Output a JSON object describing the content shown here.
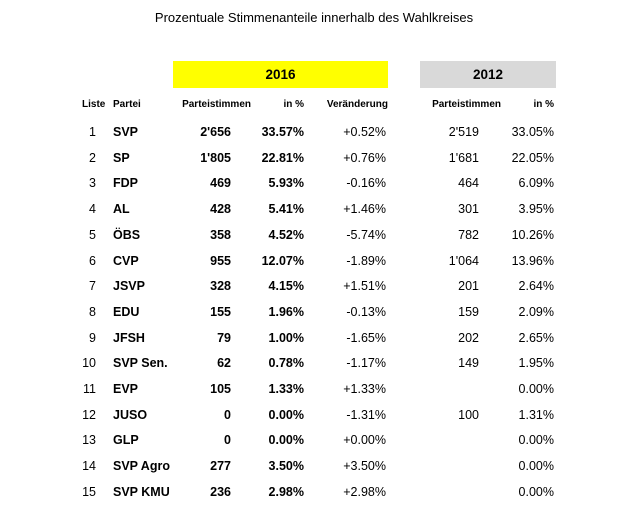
{
  "title": "Prozentuale Stimmenanteile innerhalb des Wahlkreises",
  "year_2016": "2016",
  "year_2012": "2012",
  "headers": {
    "liste": "Liste",
    "partei": "Partei",
    "parteistimmen_2016": "Parteistimmen",
    "pct_2016": "in %",
    "veraenderung": "Veränderung",
    "parteistimmen_2012": "Parteistimmen",
    "pct_2012": "in %"
  },
  "colors": {
    "band_2016": "#ffff00",
    "band_2012": "#d9d9d9"
  },
  "rows": [
    {
      "nr": "1",
      "party": "SVP",
      "votes16": "2'656",
      "pct16": "33.57%",
      "chg": "+0.52%",
      "votes12": "2'519",
      "pct12": "33.05%"
    },
    {
      "nr": "2",
      "party": "SP",
      "votes16": "1'805",
      "pct16": "22.81%",
      "chg": "+0.76%",
      "votes12": "1'681",
      "pct12": "22.05%"
    },
    {
      "nr": "3",
      "party": "FDP",
      "votes16": "469",
      "pct16": "5.93%",
      "chg": "-0.16%",
      "votes12": "464",
      "pct12": "6.09%"
    },
    {
      "nr": "4",
      "party": "AL",
      "votes16": "428",
      "pct16": "5.41%",
      "chg": "+1.46%",
      "votes12": "301",
      "pct12": "3.95%"
    },
    {
      "nr": "5",
      "party": "ÖBS",
      "votes16": "358",
      "pct16": "4.52%",
      "chg": "-5.74%",
      "votes12": "782",
      "pct12": "10.26%"
    },
    {
      "nr": "6",
      "party": "CVP",
      "votes16": "955",
      "pct16": "12.07%",
      "chg": "-1.89%",
      "votes12": "1'064",
      "pct12": "13.96%"
    },
    {
      "nr": "7",
      "party": "JSVP",
      "votes16": "328",
      "pct16": "4.15%",
      "chg": "+1.51%",
      "votes12": "201",
      "pct12": "2.64%"
    },
    {
      "nr": "8",
      "party": "EDU",
      "votes16": "155",
      "pct16": "1.96%",
      "chg": "-0.13%",
      "votes12": "159",
      "pct12": "2.09%"
    },
    {
      "nr": "9",
      "party": "JFSH",
      "votes16": "79",
      "pct16": "1.00%",
      "chg": "-1.65%",
      "votes12": "202",
      "pct12": "2.65%"
    },
    {
      "nr": "10",
      "party": "SVP Sen.",
      "votes16": "62",
      "pct16": "0.78%",
      "chg": "-1.17%",
      "votes12": "149",
      "pct12": "1.95%"
    },
    {
      "nr": "11",
      "party": "EVP",
      "votes16": "105",
      "pct16": "1.33%",
      "chg": "+1.33%",
      "votes12": "",
      "pct12": "0.00%"
    },
    {
      "nr": "12",
      "party": "JUSO",
      "votes16": "0",
      "pct16": "0.00%",
      "chg": "-1.31%",
      "votes12": "100",
      "pct12": "1.31%"
    },
    {
      "nr": "13",
      "party": "GLP",
      "votes16": "0",
      "pct16": "0.00%",
      "chg": "+0.00%",
      "votes12": "",
      "pct12": "0.00%"
    },
    {
      "nr": "14",
      "party": "SVP Agro",
      "votes16": "277",
      "pct16": "3.50%",
      "chg": "+3.50%",
      "votes12": "",
      "pct12": "0.00%"
    },
    {
      "nr": "15",
      "party": "SVP KMU",
      "votes16": "236",
      "pct16": "2.98%",
      "chg": "+2.98%",
      "votes12": "",
      "pct12": "0.00%"
    }
  ]
}
